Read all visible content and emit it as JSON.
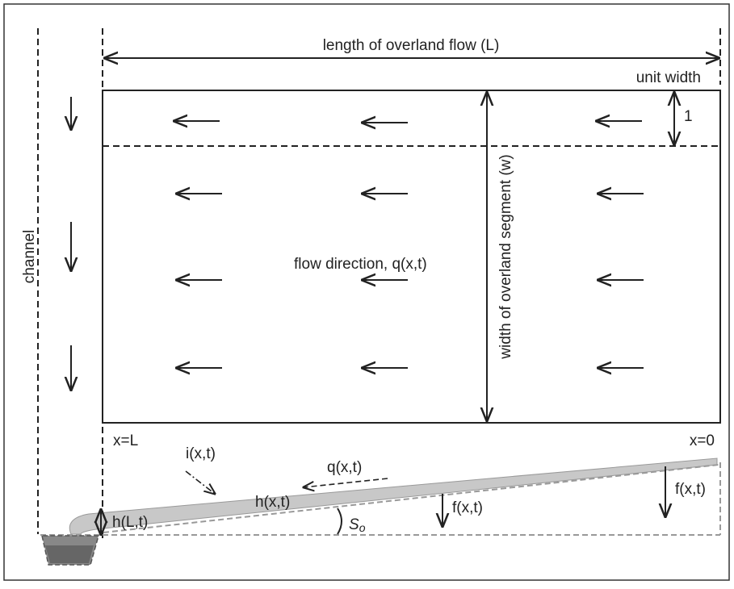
{
  "title": "length of overland flow (L)",
  "unit_width": {
    "label": "unit width",
    "value_label": "1"
  },
  "channel": "channel",
  "flow_direction": "flow direction, q(x,t)",
  "width_label": "width of overland segment (w)",
  "x_left": "x=L",
  "x_right": "x=0",
  "profile": {
    "rainfall": "i(x,t)",
    "flow": "q(x,t)",
    "depth": "h(x,t)",
    "outlet_depth": "h(L,t)",
    "infiltration_mid": "f(x,t)",
    "infiltration_right": "f(x,t)",
    "slope": {
      "symbol": "S",
      "subscript": "o"
    }
  }
}
